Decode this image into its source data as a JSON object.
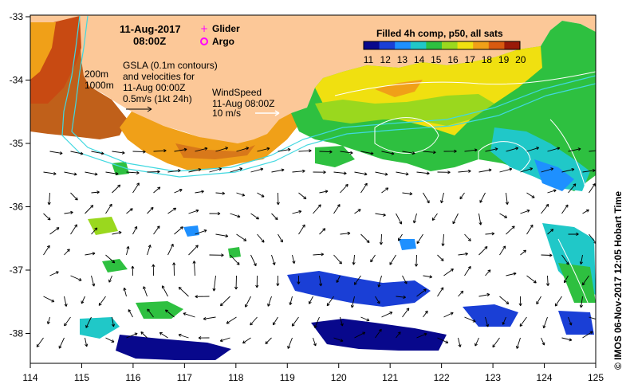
{
  "map": {
    "date_line": "11-Aug-2017",
    "time_line": "08:00Z",
    "legend": {
      "glider_label": "Glider",
      "argo_label": "Argo",
      "glider_color": "#ff00ff",
      "argo_color": "#ff00ff"
    },
    "depth_labels": [
      "200m",
      "1000m"
    ],
    "gsla_lines": [
      "GSLA (0.1m contours)",
      "and velocities for",
      "11-Aug 00:00Z",
      "0.5m/s (1kt 24h)"
    ],
    "wind_lines": [
      "WindSpeed",
      "11-Aug 08:00Z",
      "10 m/s"
    ],
    "colorbar": {
      "title": "Filled 4h comp, p50, all sats",
      "ticks": [
        "11",
        "12",
        "13",
        "14",
        "15",
        "16",
        "17",
        "18",
        "19",
        "20"
      ],
      "colors": [
        "#08088c",
        "#1a3fd6",
        "#1e90ff",
        "#20c8c8",
        "#2ec040",
        "#9ad81e",
        "#f0e010",
        "#f0a018",
        "#d85a10",
        "#9a1a08"
      ]
    },
    "x_ticks": [
      "114",
      "115",
      "116",
      "117",
      "118",
      "119",
      "120",
      "121",
      "122",
      "123",
      "124",
      "125"
    ],
    "y_ticks": [
      "-33",
      "-34",
      "-35",
      "-36",
      "-37",
      "-38"
    ],
    "credit": "© IMOS 06-Nov-2017 12:05 Hobart Time",
    "land_color": "#fcc898"
  }
}
